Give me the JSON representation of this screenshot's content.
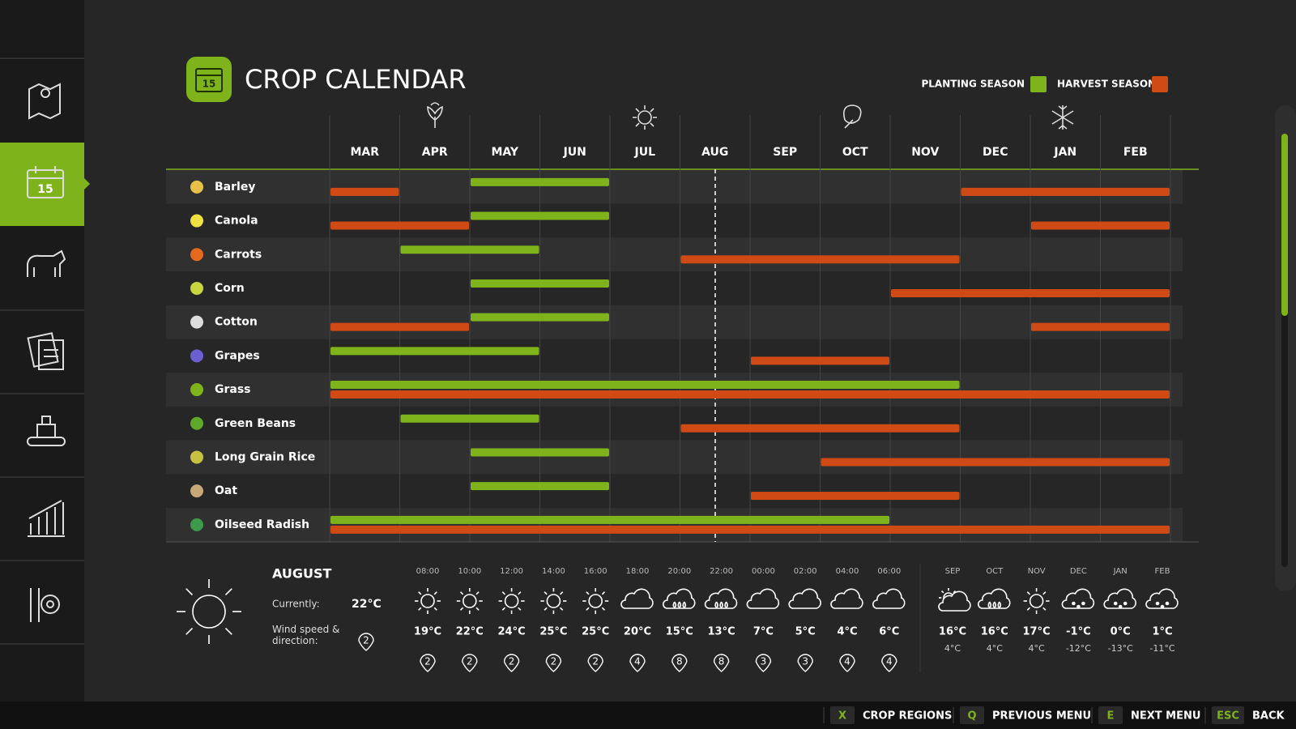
{
  "header": {
    "icon_day": "15",
    "title": "CROP CALENDAR"
  },
  "legend": {
    "planting": {
      "label": "PLANTING SEASON",
      "color": "#7fb31c"
    },
    "harvest": {
      "label": "HARVEST SEASON",
      "color": "#d04a16"
    }
  },
  "calendar": {
    "months": [
      "MAR",
      "APR",
      "MAY",
      "JUN",
      "JUL",
      "AUG",
      "SEP",
      "OCT",
      "NOV",
      "DEC",
      "JAN",
      "FEB"
    ],
    "crops": [
      {
        "name": "Barley",
        "planting": [
          [
            2,
            3
          ]
        ],
        "harvest": [
          [
            0,
            0
          ],
          [
            9,
            11
          ]
        ]
      },
      {
        "name": "Canola",
        "planting": [
          [
            2,
            3
          ]
        ],
        "harvest": [
          [
            0,
            1
          ],
          [
            10,
            11
          ]
        ]
      },
      {
        "name": "Carrots",
        "planting": [
          [
            1,
            2
          ]
        ],
        "harvest": [
          [
            5,
            8
          ]
        ]
      },
      {
        "name": "Corn",
        "planting": [
          [
            2,
            3
          ]
        ],
        "harvest": [
          [
            8,
            11
          ]
        ]
      },
      {
        "name": "Cotton",
        "planting": [
          [
            2,
            3
          ]
        ],
        "harvest": [
          [
            0,
            1
          ],
          [
            10,
            11
          ]
        ]
      },
      {
        "name": "Grapes",
        "planting": [
          [
            0,
            2
          ]
        ],
        "harvest": [
          [
            6,
            7
          ]
        ]
      },
      {
        "name": "Grass",
        "planting": [
          [
            0,
            8
          ]
        ],
        "harvest": [
          [
            0,
            11
          ]
        ]
      },
      {
        "name": "Green Beans",
        "planting": [
          [
            1,
            2
          ]
        ],
        "harvest": [
          [
            5,
            8
          ]
        ]
      },
      {
        "name": "Long Grain Rice",
        "planting": [
          [
            2,
            3
          ]
        ],
        "harvest": [
          [
            7,
            11
          ]
        ]
      },
      {
        "name": "Oat",
        "planting": [
          [
            2,
            3
          ]
        ],
        "harvest": [
          [
            6,
            8
          ]
        ]
      },
      {
        "name": "Oilseed Radish",
        "planting": [
          [
            0,
            7
          ]
        ],
        "harvest": [
          [
            0,
            11
          ]
        ]
      }
    ]
  },
  "current": {
    "month": "AUGUST",
    "currently_label": "Currently:",
    "temperature": "22°C",
    "wind_label": "Wind speed & direction:",
    "wind": "2",
    "icon": "sun"
  },
  "hourly": [
    {
      "time": "08:00",
      "icon": "sun",
      "temp": "19°C",
      "wind": "2"
    },
    {
      "time": "10:00",
      "icon": "sun",
      "temp": "22°C",
      "wind": "2"
    },
    {
      "time": "12:00",
      "icon": "sun",
      "temp": "24°C",
      "wind": "2"
    },
    {
      "time": "14:00",
      "icon": "sun",
      "temp": "25°C",
      "wind": "2"
    },
    {
      "time": "16:00",
      "icon": "sun",
      "temp": "25°C",
      "wind": "2"
    },
    {
      "time": "18:00",
      "icon": "cloud",
      "temp": "20°C",
      "wind": "4"
    },
    {
      "time": "20:00",
      "icon": "rain",
      "temp": "15°C",
      "wind": "8"
    },
    {
      "time": "22:00",
      "icon": "rain",
      "temp": "13°C",
      "wind": "8"
    },
    {
      "time": "00:00",
      "icon": "cloud",
      "temp": "7°C",
      "wind": "3"
    },
    {
      "time": "02:00",
      "icon": "cloud",
      "temp": "5°C",
      "wind": "3"
    },
    {
      "time": "04:00",
      "icon": "cloud",
      "temp": "4°C",
      "wind": "4"
    },
    {
      "time": "06:00",
      "icon": "cloud",
      "temp": "6°C",
      "wind": "4"
    }
  ],
  "monthly": [
    {
      "month": "SEP",
      "icon": "partly",
      "high": "16°C",
      "low": "4°C"
    },
    {
      "month": "OCT",
      "icon": "rain",
      "high": "16°C",
      "low": "4°C"
    },
    {
      "month": "NOV",
      "icon": "sun",
      "high": "17°C",
      "low": "4°C"
    },
    {
      "month": "DEC",
      "icon": "snow",
      "high": "-1°C",
      "low": "-12°C"
    },
    {
      "month": "JAN",
      "icon": "snow",
      "high": "0°C",
      "low": "-13°C"
    },
    {
      "month": "FEB",
      "icon": "snow",
      "high": "1°C",
      "low": "-11°C"
    }
  ],
  "footer": [
    {
      "key": "X",
      "label": "CROP REGIONS"
    },
    {
      "key": "Q",
      "label": "PREVIOUS MENU"
    },
    {
      "key": "E",
      "label": "NEXT MENU"
    },
    {
      "key": "ESC",
      "label": "BACK"
    }
  ]
}
